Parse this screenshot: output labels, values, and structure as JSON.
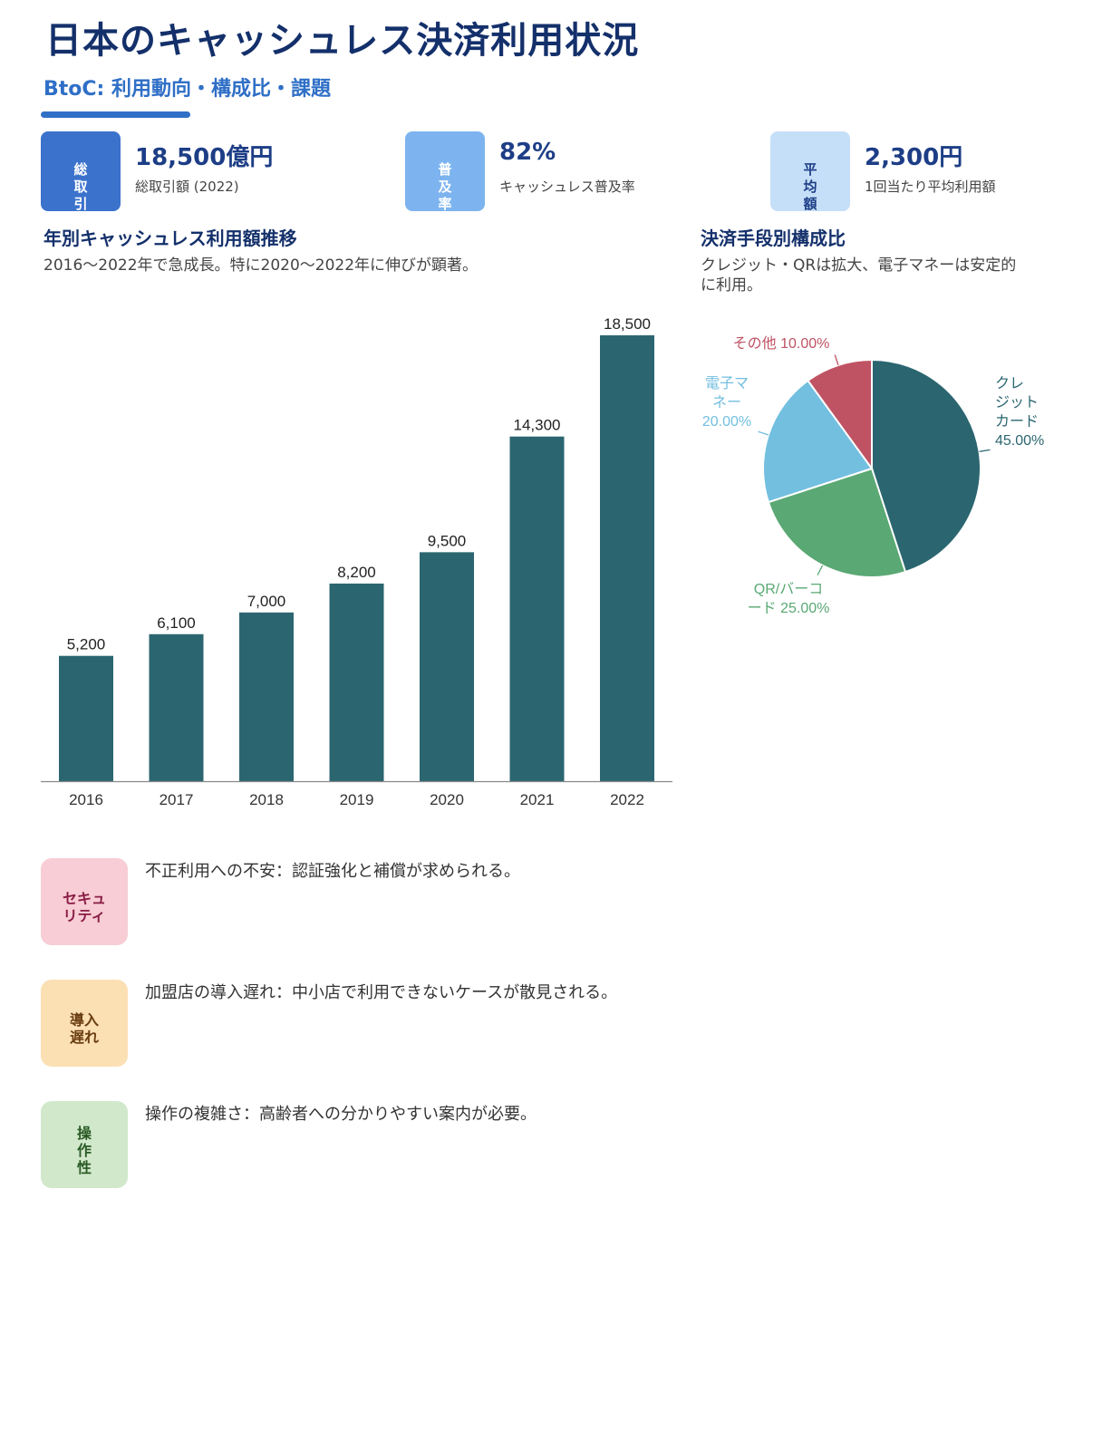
{
  "header": {
    "title": "日本のキャッシュレス決済利用状況",
    "subtitle": "BtoC: 利用動向・構成比・課題"
  },
  "kpis": [
    {
      "badge": "総取引",
      "value": "18,500億円",
      "label": "総取引額 (2022)",
      "color": "#3b72cc",
      "text_color": "#ffffff"
    },
    {
      "badge": "普及率",
      "value": "82%",
      "label": "キャッシュレス普及率",
      "color": "#7db4ef",
      "text_color": "#ffffff"
    },
    {
      "badge": "平均額",
      "value": "2,300円",
      "label": "1回当たり平均利用額",
      "color": "#c5dff8",
      "text_color": "#1d3e86"
    }
  ],
  "bar_section": {
    "title": "年別キャッシュレス利用額推移",
    "desc": "2016〜2022年で急成長。特に2020〜2022年に伸びが顕著。"
  },
  "pie_section": {
    "title": "決済手段別構成比",
    "desc_line1": "クレジット・QRは拡大、電子マネーは安定的",
    "desc_line2": "に利用。"
  },
  "chart_data": [
    {
      "type": "bar",
      "categories": [
        "2016",
        "2017",
        "2018",
        "2019",
        "2020",
        "2021",
        "2022"
      ],
      "values": [
        5200,
        6100,
        7000,
        8200,
        9500,
        14300,
        18500
      ],
      "value_labels": [
        "5,200",
        "6,100",
        "7,000",
        "8,200",
        "9,500",
        "14,300",
        "18,500"
      ],
      "ylim": [
        0,
        18500
      ],
      "color": "#2b6670",
      "grid": false
    },
    {
      "type": "pie",
      "slices": [
        {
          "label_lines": [
            "クレ",
            "ジット",
            "カード",
            "45.00%"
          ],
          "value": 45,
          "color": "#2b6670"
        },
        {
          "label_lines": [
            "QR/バーコ",
            "ード 25.00%"
          ],
          "value": 25,
          "color": "#5aa874"
        },
        {
          "label_lines": [
            "電子マ",
            "ネー",
            "20.00%"
          ],
          "value": 20,
          "color": "#72bfe0"
        },
        {
          "label_lines": [
            "その他 10.00%"
          ],
          "value": 10,
          "color": "#bf5363"
        }
      ]
    }
  ],
  "issues": [
    {
      "badge": "セキュリティ",
      "text": "不正利用への不安：認証強化と補償が求められる。",
      "color": "#f8cdd5",
      "text_color": "#8a1d46"
    },
    {
      "badge": "導入遅れ",
      "text": "加盟店の導入遅れ：中小店で利用できないケースが散見される。",
      "color": "#fbe0b4",
      "text_color": "#6b3d12"
    },
    {
      "badge": "操作性",
      "text": "操作の複雑さ：高齢者への分かりやすい案内が必要。",
      "color": "#d1e8cb",
      "text_color": "#2a5a25"
    }
  ]
}
